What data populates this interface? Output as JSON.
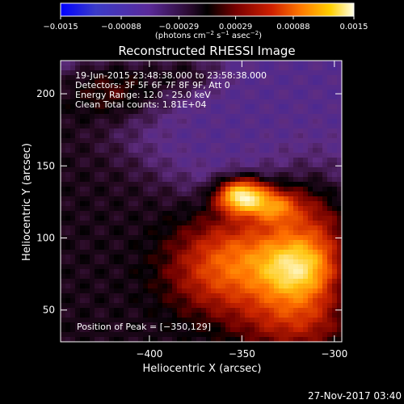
{
  "chart_data": {
    "type": "heatmap",
    "title": "Reconstructed RHESSI Image",
    "xlabel": "Heliocentric X (arcsec)",
    "ylabel": "Heliocentric Y (arcsec)",
    "xlim": [
      -448,
      -296
    ],
    "ylim": [
      28,
      223
    ],
    "x_ticks": [
      -400,
      -350,
      -300
    ],
    "y_ticks": [
      50,
      100,
      150,
      200
    ],
    "x_tick_labels": [
      "−400",
      "−350",
      "−300"
    ],
    "y_tick_labels": [
      "50",
      "100",
      "150",
      "200"
    ],
    "colorbar": {
      "range": [
        -0.0015,
        0.0015
      ],
      "ticks": [
        -0.0015,
        -0.00088,
        -0.00029,
        0.00029,
        0.00088,
        0.0015
      ],
      "tick_labels": [
        "−0.0015",
        "−0.00088",
        "−0.00029",
        "0.00029",
        "0.00088",
        "0.0015"
      ],
      "units_base": "(photons cm",
      "units_exp1": "−2",
      "units_mid": " s",
      "units_exp2": "−1",
      "units_mid2": " asec",
      "units_exp3": "−2",
      "units_end": ")"
    },
    "annotations": [
      "19-Jun-2015 23:48:38.000 to 23:58:38.000",
      "Detectors: 3F 5F 6F 7F 8F 9F, Att 0",
      "Energy Range: 12.0 - 25.0 keV",
      "Clean    Total counts: 1.81E+04"
    ],
    "peak_label": "Position of Peak = [−350,129]",
    "peak": [
      -350,
      129
    ],
    "timestamp": "27-Nov-2017 03:40"
  }
}
